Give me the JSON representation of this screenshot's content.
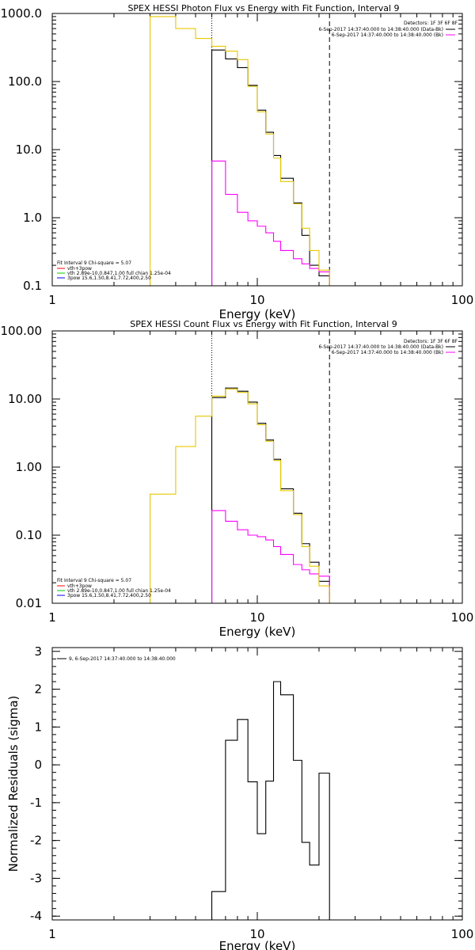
{
  "chart_data": [
    {
      "type": "line",
      "title": "SPEX HESSI Photon Flux vs Energy with Fit Function, Interval 9",
      "xlabel": "Energy (keV)",
      "ylabel": "",
      "xscale": "log",
      "yscale": "log",
      "xlim": [
        1,
        100
      ],
      "ylim": [
        0.1,
        1000
      ],
      "xticks": [
        1,
        10,
        100
      ],
      "xtick_labels": [
        "1",
        "10",
        "100"
      ],
      "yticks": [
        0.1,
        1,
        10,
        100,
        1000
      ],
      "ytick_labels": [
        "0.1",
        "1.0",
        "10.0",
        "100.0",
        "1000.0"
      ],
      "vlines": [
        {
          "x": 6.0,
          "style": "dotted"
        },
        {
          "x": 22.5,
          "style": "dashed"
        }
      ],
      "legend_top_right": [
        "Detectors: 1F 3F 6F 8F",
        "6-Sep-2017 14:37:40.000 to 14:38:40.000 (Data-Bk)",
        "6-Sep-2017 14:37:40.000 to 14:38:40.000 (Bk)"
      ],
      "legend_bottom_left": [
        "Fit Interval 9   Chi-square = 5.07",
        "vth+3pow",
        "vth 2.89e-10,0.847,1.00  full chian 1.25e-04",
        "3pow 15.6,1.50,8.41,7.72,400,2.50"
      ],
      "series": [
        {
          "color": "#000000",
          "edges": [
            6.0,
            7.0,
            8.0,
            9.0,
            10.0,
            11.0,
            12.0,
            13.0,
            15.0,
            16.5,
            18.0,
            20.0,
            22.5
          ],
          "values": [
            290,
            215,
            160,
            88,
            38,
            18,
            8.2,
            3.8,
            1.65,
            0.55,
            0.2,
            0.14
          ]
        },
        {
          "color": "#ff00ff",
          "edges": [
            6.0,
            7.0,
            8.0,
            9.0,
            10.0,
            11.0,
            12.0,
            13.0,
            15.0,
            16.5,
            18.0,
            20.0,
            22.5
          ],
          "values": [
            6.8,
            2.2,
            1.2,
            0.9,
            0.75,
            0.6,
            0.45,
            0.33,
            0.25,
            0.21,
            0.18,
            0.16
          ]
        },
        {
          "color": "#e6c800",
          "edges": [
            3.0,
            4.0,
            5.0,
            6.0,
            7.0,
            8.0,
            9.0,
            10.0,
            11.0,
            12.0,
            13.0,
            15.0,
            16.5,
            18.0,
            20.0,
            22.5
          ],
          "values": [
            900,
            600,
            430,
            330,
            280,
            210,
            85,
            36,
            17,
            7.5,
            3.4,
            1.6,
            0.7,
            0.33,
            0.17
          ]
        }
      ]
    },
    {
      "type": "line",
      "title": "SPEX HESSI Count Flux vs Energy with Fit Function, Interval 9",
      "xlabel": "Energy (keV)",
      "ylabel": "",
      "xscale": "log",
      "yscale": "log",
      "xlim": [
        1,
        100
      ],
      "ylim": [
        0.01,
        100
      ],
      "xticks": [
        1,
        10,
        100
      ],
      "xtick_labels": [
        "1",
        "10",
        "100"
      ],
      "yticks": [
        0.01,
        0.1,
        1,
        10,
        100
      ],
      "ytick_labels": [
        "0.01",
        "0.10",
        "1.00",
        "10.00",
        "100.00"
      ],
      "vlines": [
        {
          "x": 6.0,
          "style": "dotted"
        },
        {
          "x": 22.5,
          "style": "dashed"
        }
      ],
      "legend_top_right": [
        "Detectors: 1F 3F 6F 8F",
        "6-Sep-2017 14:37:40.000 to 14:38:40.000 (Data-Bk)",
        "6-Sep-2017 14:37:40.000 to 14:38:40.000 (Bk)"
      ],
      "legend_bottom_left": [
        "Fit Interval 9   Chi-square = 5.07",
        "vth+3pow",
        "vth 2.89e-10,0.847,1.00  full chian 1.25e-04",
        "3pow 15.6,1.50,8.41,7.72,400,2.50"
      ],
      "series": [
        {
          "color": "#000000",
          "edges": [
            6.0,
            7.0,
            8.0,
            9.0,
            10.0,
            11.0,
            12.0,
            13.0,
            15.0,
            16.5,
            18.0,
            20.0,
            22.5
          ],
          "values": [
            10.5,
            14.5,
            13,
            9,
            4.4,
            2.5,
            1.3,
            0.48,
            0.21,
            0.075,
            0.04,
            0.021
          ]
        },
        {
          "color": "#ff00ff",
          "edges": [
            6.0,
            7.0,
            8.0,
            9.0,
            10.0,
            11.0,
            12.0,
            13.0,
            15.0,
            16.5,
            18.0,
            20.0,
            22.5
          ],
          "values": [
            0.23,
            0.16,
            0.12,
            0.1,
            0.095,
            0.085,
            0.068,
            0.052,
            0.037,
            0.031,
            0.027,
            0.025
          ]
        },
        {
          "color": "#e6c800",
          "edges": [
            3.0,
            4.0,
            5.0,
            6.0,
            7.0,
            8.0,
            9.0,
            10.0,
            11.0,
            12.0,
            13.0,
            15.0,
            16.5,
            18.0,
            20.0,
            22.5,
            25.0
          ],
          "values": [
            0.4,
            2.0,
            5.6,
            11,
            14,
            12.5,
            8.5,
            4.2,
            2.4,
            1.25,
            0.45,
            0.2,
            0.068,
            0.035,
            0.018,
            0.008
          ]
        }
      ]
    },
    {
      "type": "line",
      "title": "",
      "xlabel": "Energy (keV)",
      "ylabel": "Normalized Residuals (sigma)",
      "xscale": "log",
      "yscale": "linear",
      "xlim": [
        1,
        100
      ],
      "ylim": [
        -4.1,
        3.1
      ],
      "xticks": [
        1,
        10,
        100
      ],
      "xtick_labels": [
        "1",
        "10",
        "100"
      ],
      "yticks": [
        -4,
        -3,
        -2,
        -1,
        0,
        1,
        2,
        3
      ],
      "ytick_labels": [
        "-4",
        "-3",
        "-2",
        "-1",
        "0",
        "1",
        "2",
        "3"
      ],
      "legend_top_left": [
        "9,  6-Sep-2017 14:37:40.000 to 14:38:40.000"
      ],
      "series": [
        {
          "color": "#000000",
          "edges": [
            6.0,
            7.0,
            8.0,
            9.0,
            10.0,
            11.0,
            12.0,
            13.0,
            15.0,
            16.5,
            18.0,
            20.0,
            22.5
          ],
          "values": [
            -3.35,
            0.65,
            1.2,
            -0.45,
            -1.82,
            -0.43,
            2.2,
            1.85,
            0.12,
            -2.05,
            -2.65,
            -0.22
          ]
        }
      ]
    }
  ]
}
